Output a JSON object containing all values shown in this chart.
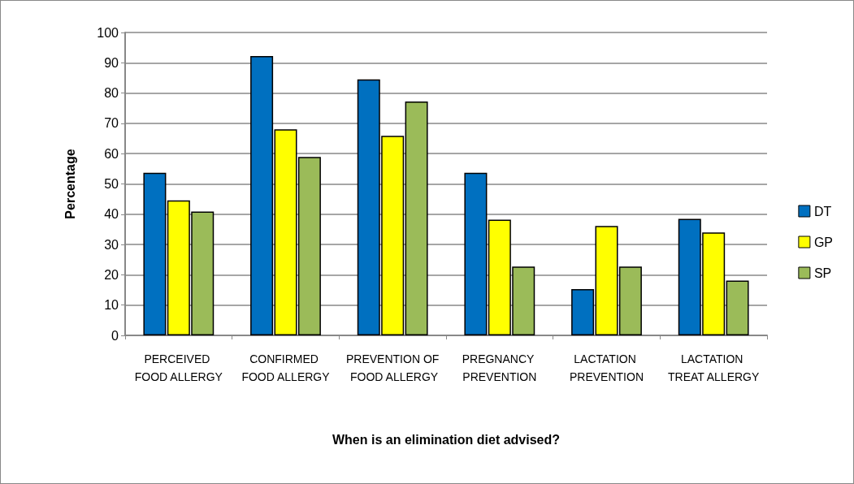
{
  "chart_data": {
    "type": "bar",
    "xlabel": "When is an elimination diet advised?",
    "ylabel": "Percentage",
    "categories": [
      "PERCEIVED FOOD ALLERGY",
      "CONFIRMED FOOD ALLERGY",
      "PREVENTION OF FOOD ALLERGY",
      "PREGNANCY PREVENTION",
      "LACTATION PREVENTION",
      "LACTATION TREAT ALLERGY"
    ],
    "series": [
      {
        "name": "DT",
        "color": "#0070c0",
        "values": [
          53.7,
          92.2,
          84.5,
          53.7,
          15.3,
          38.5
        ]
      },
      {
        "name": "GP",
        "color": "#ffff00",
        "values": [
          44.6,
          68.0,
          65.9,
          38.2,
          36.1,
          34.0
        ]
      },
      {
        "name": "SP",
        "color": "#9bbb59",
        "values": [
          40.9,
          58.9,
          77.2,
          22.7,
          22.7,
          18.1
        ]
      }
    ],
    "ylim": [
      0,
      100
    ],
    "yticks": [
      0,
      10,
      20,
      30,
      40,
      50,
      60,
      70,
      80,
      90,
      100
    ],
    "grid": "y",
    "legend": "right"
  }
}
